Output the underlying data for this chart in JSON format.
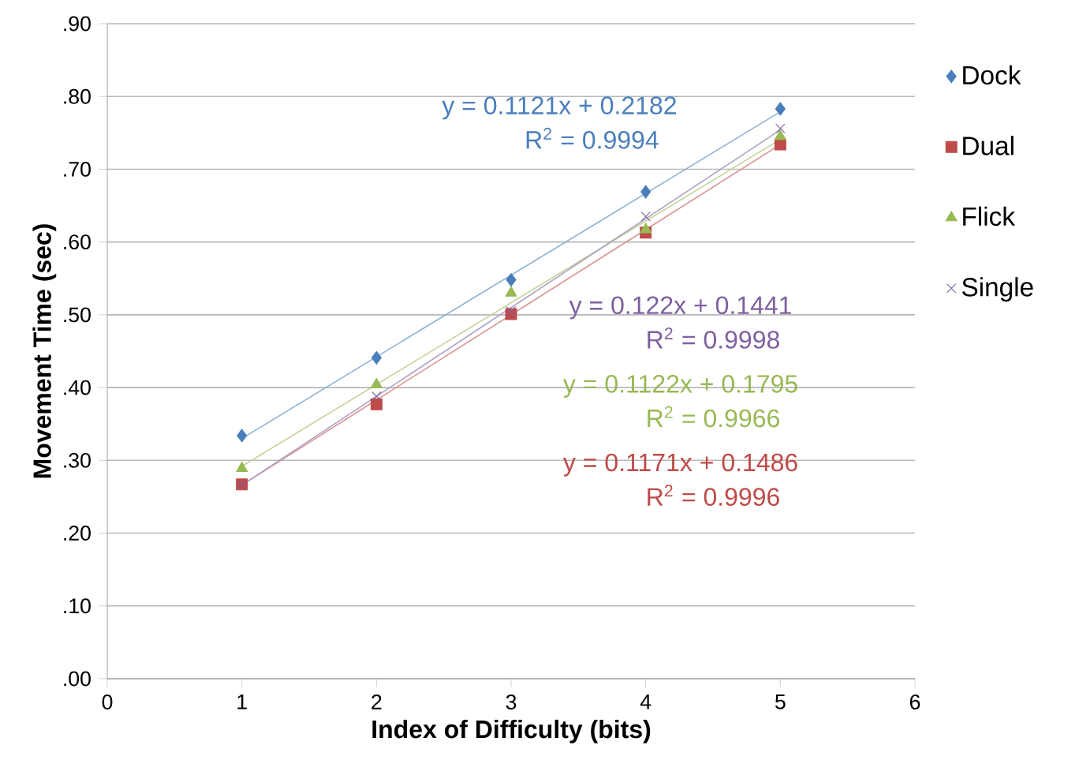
{
  "chart_data": {
    "type": "scatter",
    "xlabel": "Index of Difficulty (bits)",
    "ylabel": "Movement Time (sec)",
    "xlim": [
      0,
      6
    ],
    "xticks": [
      0,
      1,
      2,
      3,
      4,
      5,
      6
    ],
    "ylim": [
      0,
      0.9
    ],
    "yticks": [
      {
        "value": 0,
        "label": ".00"
      },
      {
        "value": 0.1,
        "label": ".10"
      },
      {
        "value": 0.2,
        "label": ".20"
      },
      {
        "value": 0.3,
        "label": ".30"
      },
      {
        "value": 0.4,
        "label": ".40"
      },
      {
        "value": 0.5,
        "label": ".50"
      },
      {
        "value": 0.6,
        "label": ".60"
      },
      {
        "value": 0.7,
        "label": ".70"
      },
      {
        "value": 0.8,
        "label": ".80"
      },
      {
        "value": 0.9,
        "label": ".90"
      }
    ],
    "grid": "y",
    "legend": "right",
    "series": [
      {
        "name": "Dock",
        "color": "#4a7ebb",
        "marker": "diamond",
        "x": [
          1,
          2,
          3,
          4,
          5
        ],
        "values": [
          0.334,
          0.441,
          0.548,
          0.669,
          0.783
        ]
      },
      {
        "name": "Dual",
        "color": "#be4b48",
        "marker": "square",
        "x": [
          1,
          2,
          3,
          4,
          5
        ],
        "values": [
          0.267,
          0.377,
          0.501,
          0.613,
          0.734
        ]
      },
      {
        "name": "Flick",
        "color": "#98b954",
        "marker": "triangle",
        "x": [
          1,
          2,
          3,
          4,
          5
        ],
        "values": [
          0.289,
          0.404,
          0.53,
          0.617,
          0.745
        ]
      },
      {
        "name": "Single",
        "color": "#7d60a0",
        "marker": "cross",
        "x": [
          1,
          2,
          3,
          4,
          5
        ],
        "values": [
          0.267,
          0.388,
          0.505,
          0.635,
          0.756
        ]
      },
      {
        "type": "line",
        "color": "#92b2d6",
        "marker": "none",
        "x": [
          1,
          5
        ],
        "values": [
          0.33,
          0.779
        ]
      },
      {
        "type": "line",
        "color": "#d89391",
        "marker": "none",
        "x": [
          1,
          5
        ],
        "values": [
          0.266,
          0.734
        ]
      },
      {
        "type": "line",
        "color": "#c1d598",
        "marker": "none",
        "x": [
          1,
          5
        ],
        "values": [
          0.292,
          0.741
        ]
      },
      {
        "type": "line",
        "color": "#b1a0c6",
        "marker": "none",
        "x": [
          1,
          5
        ],
        "values": [
          0.266,
          0.754
        ]
      }
    ],
    "annotations": [
      "y = 0.1121x + 0.2182",
      "R$^{2}$ = 0.9994",
      "y = 0.122x + 0.1441",
      "R$^{2}$ = 0.9998",
      "y = 0.1122x + 0.1795",
      "R$^{2}$ = 0.9966",
      "y = 0.1171x + 0.1486",
      "R$^{2}$ = 0.9996"
    ]
  }
}
